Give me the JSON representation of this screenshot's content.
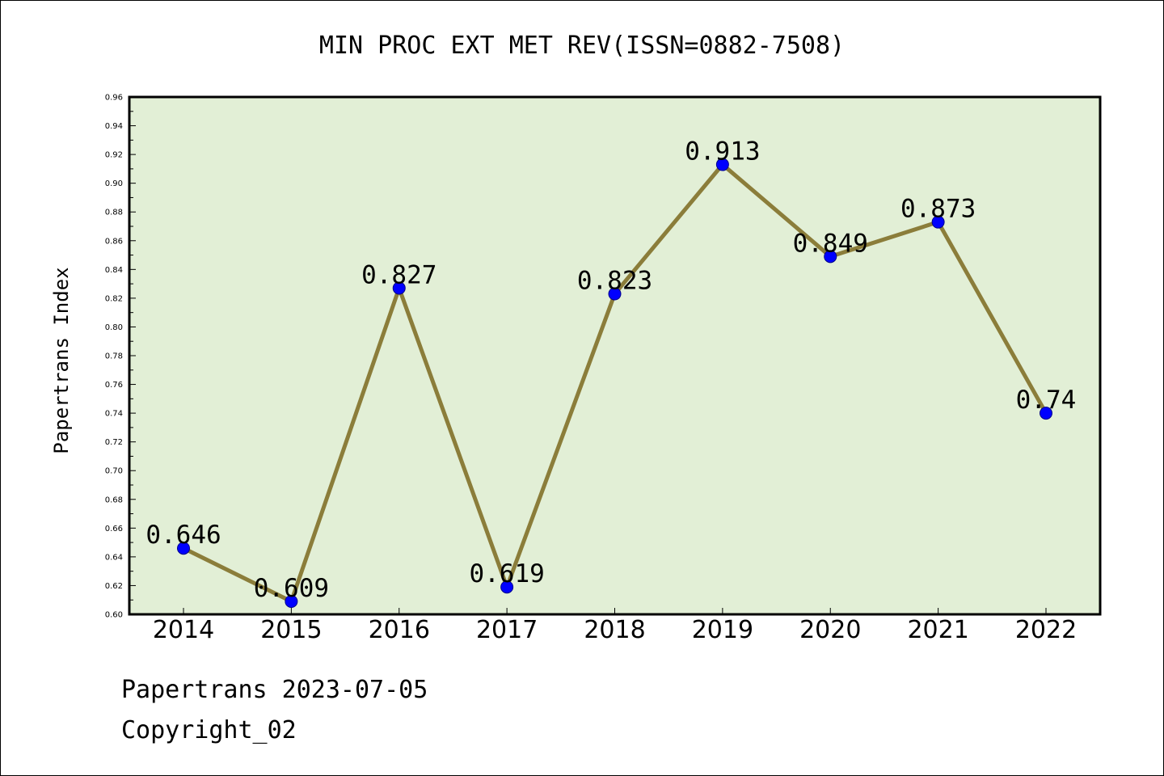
{
  "chart_data": {
    "type": "line",
    "title": "MIN PROC EXT MET REV(ISSN=0882-7508)",
    "xlabel": "",
    "ylabel": "Papertrans Index",
    "categories": [
      "2014",
      "2015",
      "2016",
      "2017",
      "2018",
      "2019",
      "2020",
      "2021",
      "2022"
    ],
    "values": [
      0.646,
      0.609,
      0.827,
      0.619,
      0.823,
      0.913,
      0.849,
      0.873,
      0.74
    ],
    "data_labels": [
      "0.646",
      "0.609",
      "0.827",
      "0.619",
      "0.823",
      "0.913",
      "0.849",
      "0.873",
      "0.74"
    ],
    "ylim": [
      0.6,
      0.96
    ],
    "yticks": [
      "0.60",
      "0.62",
      "0.64",
      "0.66",
      "0.68",
      "0.70",
      "0.72",
      "0.74",
      "0.76",
      "0.78",
      "0.80",
      "0.82",
      "0.84",
      "0.86",
      "0.88",
      "0.90",
      "0.92",
      "0.94",
      "0.96"
    ],
    "grid": false,
    "colors": {
      "plot_background": "#e2efd6",
      "line": "#8b7d3a",
      "marker": "#0000ff"
    }
  },
  "footer": {
    "line1": "Papertrans 2023-07-05",
    "line2": "Copyright_02"
  }
}
